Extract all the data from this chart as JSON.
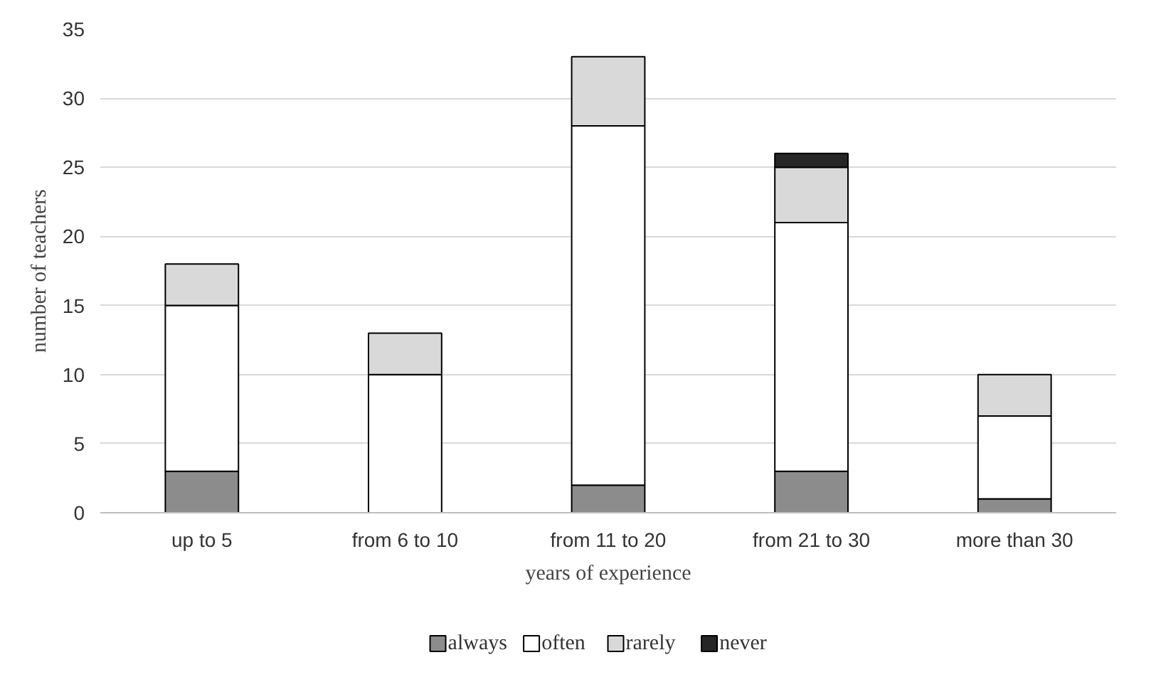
{
  "chart_data": {
    "type": "bar",
    "stacked": true,
    "xlabel": "years of experience",
    "ylabel": "number of teachers",
    "categories": [
      "up to 5",
      "from 6 to 10",
      "from 11 to 20",
      "from 21 to 30",
      "more than 30"
    ],
    "series": [
      {
        "name": "always",
        "color": "#8c8c8c",
        "values": [
          3,
          0,
          2,
          3,
          1
        ]
      },
      {
        "name": "often",
        "color": "#ffffff",
        "values": [
          12,
          10,
          26,
          18,
          6
        ]
      },
      {
        "name": "rarely",
        "color": "#d9d9d9",
        "values": [
          3,
          3,
          5,
          4,
          3
        ]
      },
      {
        "name": "never",
        "color": "#262626",
        "values": [
          0,
          0,
          0,
          1,
          0
        ]
      }
    ],
    "ylim": [
      0,
      35
    ],
    "yticks": [
      0,
      5,
      10,
      15,
      20,
      25,
      30,
      35
    ],
    "grid": "y",
    "legend": "bottom"
  }
}
